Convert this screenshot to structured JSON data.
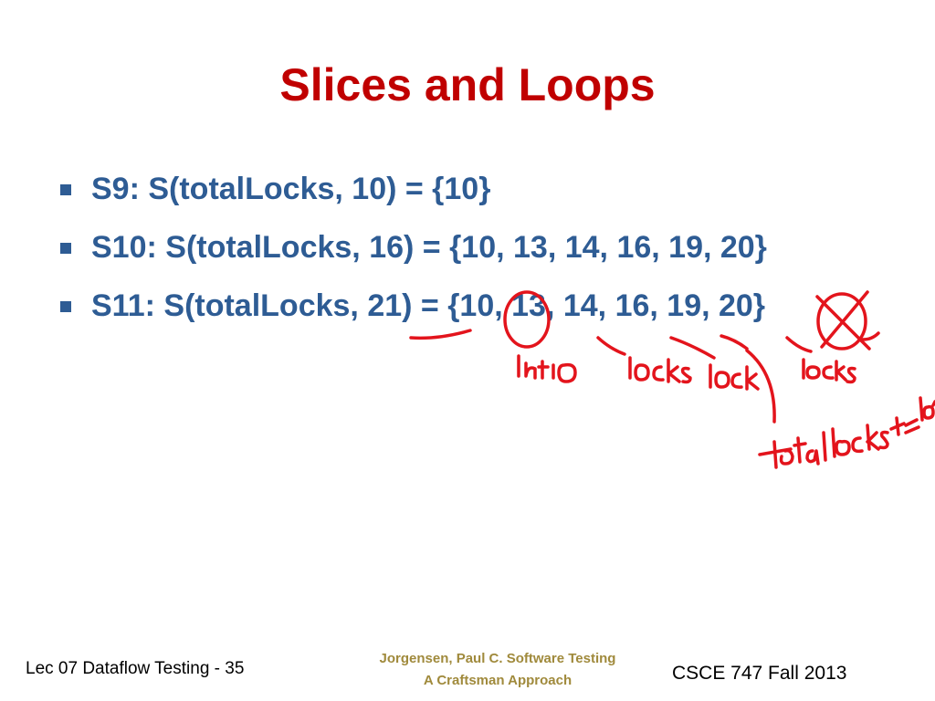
{
  "slide": {
    "title": "Slices and Loops",
    "bullets": [
      "S9: S(totalLocks, 10) = {10}",
      "S10: S(totalLocks, 16) = {10, 13, 14, 16, 19, 20}",
      "S11: S(totalLocks, 21) = {10, 13, 14, 16, 19, 20}"
    ],
    "footer": {
      "left": "Lec 07 Dataflow Testing - 35",
      "center_line1": "Jorgensen, Paul C. Software Testing",
      "center_line2": "A Craftsman Approach",
      "right": "CSCE 747 Fall 2013"
    },
    "colors": {
      "title": "#c00000",
      "bullet_text": "#2e5c94",
      "footer_center": "#a08a3c",
      "ink": "#e3141c"
    }
  }
}
